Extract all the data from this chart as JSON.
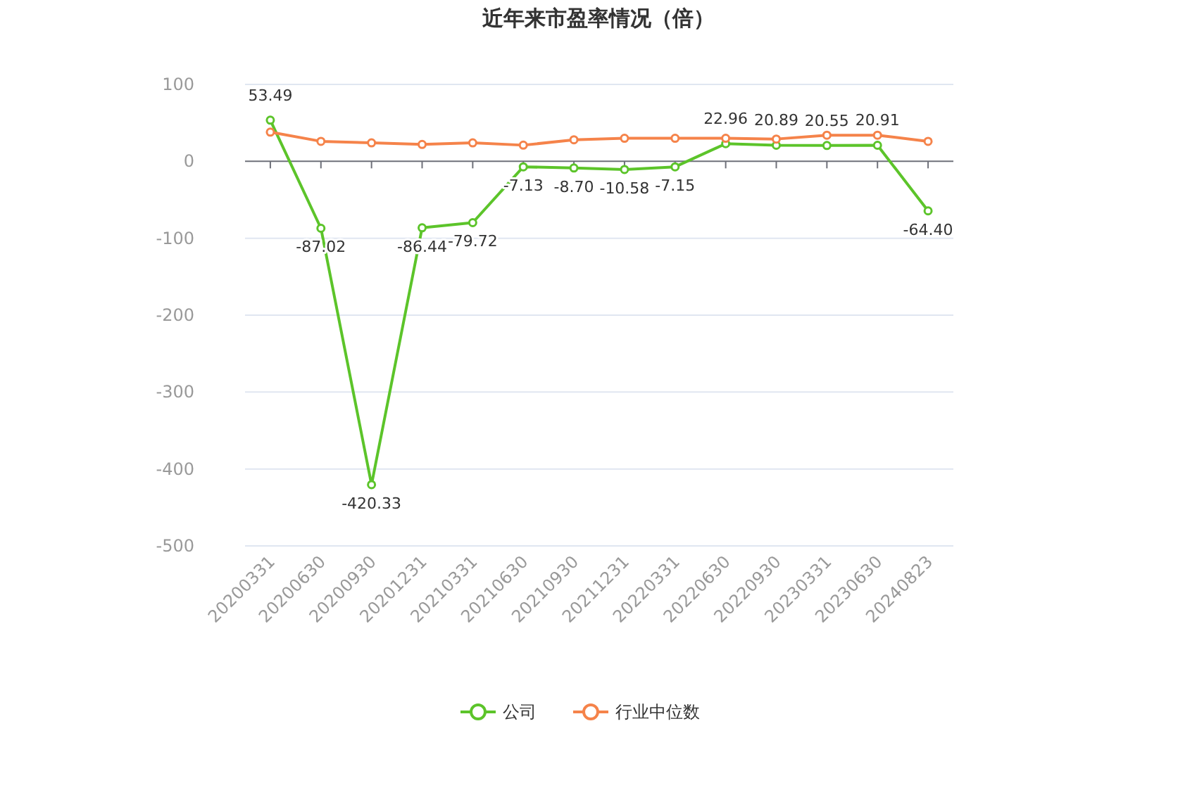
{
  "chart_data": {
    "type": "line",
    "title": "近年来市盈率情况（倍）",
    "categories": [
      "20200331",
      "20200630",
      "20200930",
      "20201231",
      "20210331",
      "20210630",
      "20210930",
      "20211231",
      "20220331",
      "20220630",
      "20220930",
      "20230331",
      "20230630",
      "20240823"
    ],
    "series": [
      {
        "name": "公司",
        "color": "#5cc42a",
        "values": [
          53.49,
          -87.02,
          -420.33,
          -86.44,
          -79.72,
          -7.13,
          -8.7,
          -10.58,
          -7.15,
          22.96,
          20.89,
          20.55,
          20.91,
          -64.4
        ],
        "value_labels": [
          "53.49",
          "-87.02",
          "-420.33",
          "-86.44",
          "-79.72",
          "-7.13",
          "-8.70",
          "-10.58",
          "-7.15",
          "22.96",
          "20.89",
          "20.55",
          "20.91",
          "-64.40"
        ]
      },
      {
        "name": "行业中位数",
        "color": "#f5834a",
        "values": [
          38,
          26,
          24,
          22,
          24,
          21,
          28,
          30,
          30,
          30,
          29,
          34,
          34,
          26
        ]
      }
    ],
    "ylim": [
      -500,
      100
    ],
    "yticks": [
      -500,
      -400,
      -300,
      -200,
      -100,
      0,
      100
    ],
    "grid": "y",
    "legend": "bottom",
    "marker": "circle",
    "line_style": "solid"
  }
}
